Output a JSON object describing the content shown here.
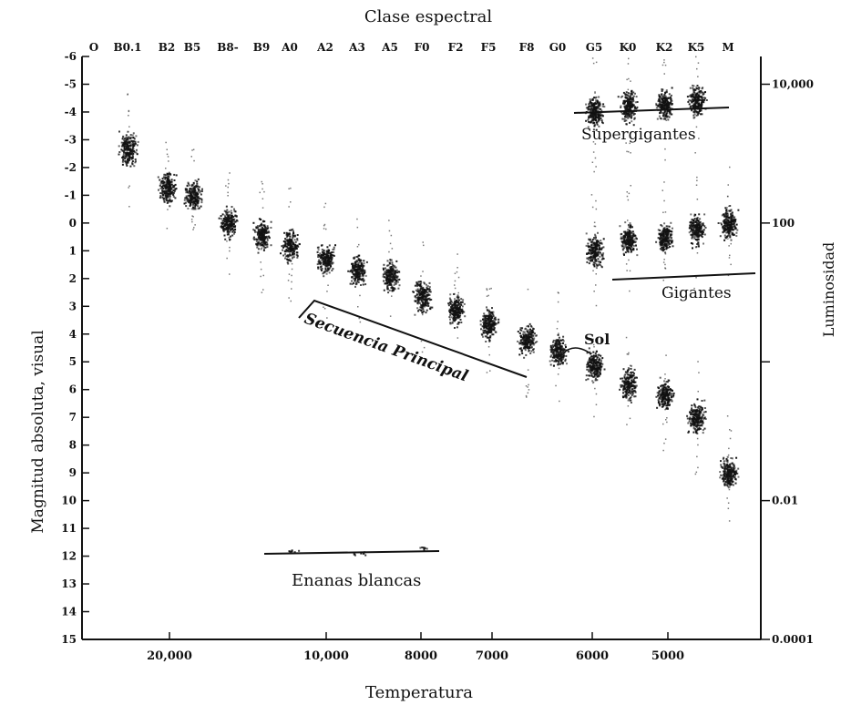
{
  "chart_data": {
    "type": "scatter",
    "title": "Clase espectral",
    "xlabel": "Temperatura",
    "ylabel": "Magnitud absoluta, visual",
    "ylabel_right": "Luminosidad",
    "spectral_classes": [
      "O",
      "B0.1",
      "B2",
      "B5",
      "B8-",
      "B9",
      "A0",
      "A2",
      "A3",
      "A5",
      "F0",
      "F2",
      "F5",
      "F8",
      "G0",
      "G5",
      "K0",
      "K2",
      "K5",
      "M"
    ],
    "temperature_ticks": [
      "20,000",
      "10,000",
      "8000",
      "7000",
      "6000",
      "5000"
    ],
    "ylim": [
      15,
      -6
    ],
    "y_ticks": [
      -6,
      -5,
      -4,
      -3,
      -2,
      -1,
      0,
      1,
      2,
      3,
      4,
      5,
      6,
      7,
      8,
      9,
      10,
      11,
      12,
      13,
      14,
      15
    ],
    "luminosity_ticks": [
      {
        "label": "10,000",
        "mag": -5
      },
      {
        "label": "100",
        "mag": 0
      },
      {
        "label": "",
        "mag": 5
      },
      {
        "label": "0.01",
        "mag": 10
      },
      {
        "label": "0.0001",
        "mag": 15
      }
    ],
    "annotations": {
      "supergiants": "Supergigantes",
      "giants": "Gigantes",
      "main_sequence": "Secuencia Principal",
      "sun": "Sol",
      "white_dwarfs": "Enanas blancas"
    },
    "series": [
      {
        "name": "Secuencia Principal",
        "points": [
          {
            "x": "B0.1",
            "y": -2.7
          },
          {
            "x": "B2",
            "y": -1.3
          },
          {
            "x": "B5",
            "y": -1.0
          },
          {
            "x": "B8-",
            "y": 0.0
          },
          {
            "x": "B9",
            "y": 0.4
          },
          {
            "x": "A0",
            "y": 0.8
          },
          {
            "x": "A2",
            "y": 1.3
          },
          {
            "x": "A3",
            "y": 1.7
          },
          {
            "x": "A5",
            "y": 1.9
          },
          {
            "x": "F0",
            "y": 2.6
          },
          {
            "x": "F2",
            "y": 3.1
          },
          {
            "x": "F5",
            "y": 3.6
          },
          {
            "x": "F8",
            "y": 4.2
          },
          {
            "x": "G0",
            "y": 4.6
          },
          {
            "x": "G5",
            "y": 5.1
          },
          {
            "x": "K0",
            "y": 5.8
          },
          {
            "x": "K2",
            "y": 6.2
          },
          {
            "x": "K5",
            "y": 7.0
          },
          {
            "x": "M",
            "y": 9.0
          }
        ]
      },
      {
        "name": "Gigantes",
        "points": [
          {
            "x": "G5",
            "y": 1.0
          },
          {
            "x": "K0",
            "y": 0.6
          },
          {
            "x": "K2",
            "y": 0.5
          },
          {
            "x": "K5",
            "y": 0.2
          },
          {
            "x": "M",
            "y": 0.0
          }
        ]
      },
      {
        "name": "Supergigantes",
        "points": [
          {
            "x": "G5",
            "y": -4.0
          },
          {
            "x": "K0",
            "y": -4.2
          },
          {
            "x": "K2",
            "y": -4.3
          },
          {
            "x": "K5",
            "y": -4.4
          }
        ]
      },
      {
        "name": "Enanas blancas",
        "points": [
          {
            "x": "A0",
            "y": 11.8
          },
          {
            "x": "A3",
            "y": 11.9
          },
          {
            "x": "F0",
            "y": 11.7
          }
        ]
      }
    ],
    "grid": false,
    "legend": "none"
  }
}
